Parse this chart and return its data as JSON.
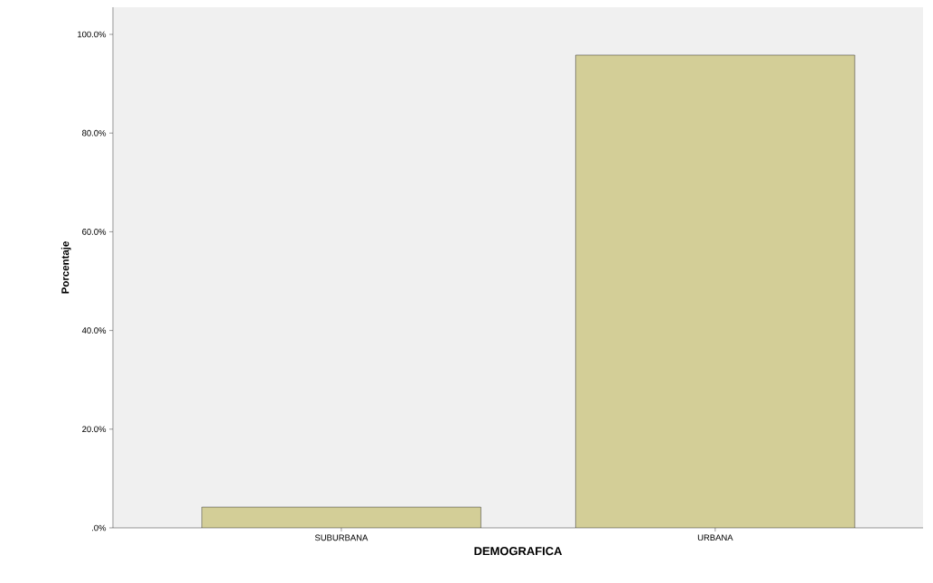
{
  "chart_data": {
    "type": "bar",
    "xlabel": "DEMOGRAFICA",
    "ylabel": "Porcentaje",
    "categories": [
      "SUBURBANA",
      "URBANA"
    ],
    "values": [
      4.2,
      95.8
    ],
    "color": "#d3ce97",
    "ylim": [
      0,
      105.5
    ],
    "yticks": [
      {
        "value": 0,
        "label": ".0%"
      },
      {
        "value": 20,
        "label": "20.0%"
      },
      {
        "value": 40,
        "label": "40.0%"
      },
      {
        "value": 60,
        "label": "60.0%"
      },
      {
        "value": 80,
        "label": "80.0%"
      },
      {
        "value": 100,
        "label": "100.0%"
      }
    ]
  }
}
